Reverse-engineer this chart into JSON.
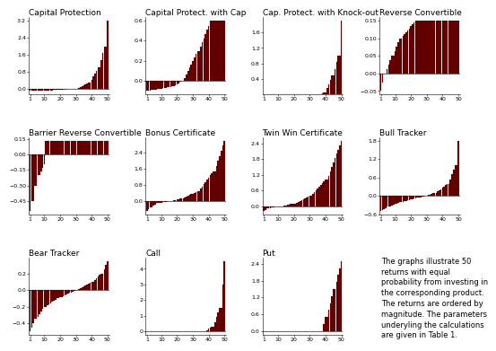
{
  "titles": [
    "Capital Protection",
    "Capital Protect. with Cap",
    "Cap. Protect. with Knock-out",
    "Reverse Convertible",
    "Barrier Reverse Convertible",
    "Bonus Certificate",
    "Twin Win Certificate",
    "Bull Tracker",
    "Bear Tracker",
    "Call",
    "Put"
  ],
  "bar_color": "#6b0000",
  "bar_edge_color": "#2a0000",
  "background_color": "#ffffff",
  "n_bars": 50,
  "text_annotation": "The graphs illustrate 50\nreturns with equal\nprobability from investing in\nthe corresponding product.\nThe returns are ordered by\nmagnitude. The parameters\nunderyling the calculations\nare given in Table 1.",
  "font_size_title": 6.5,
  "font_size_tick": 4.5,
  "font_size_annotation": 6.0
}
